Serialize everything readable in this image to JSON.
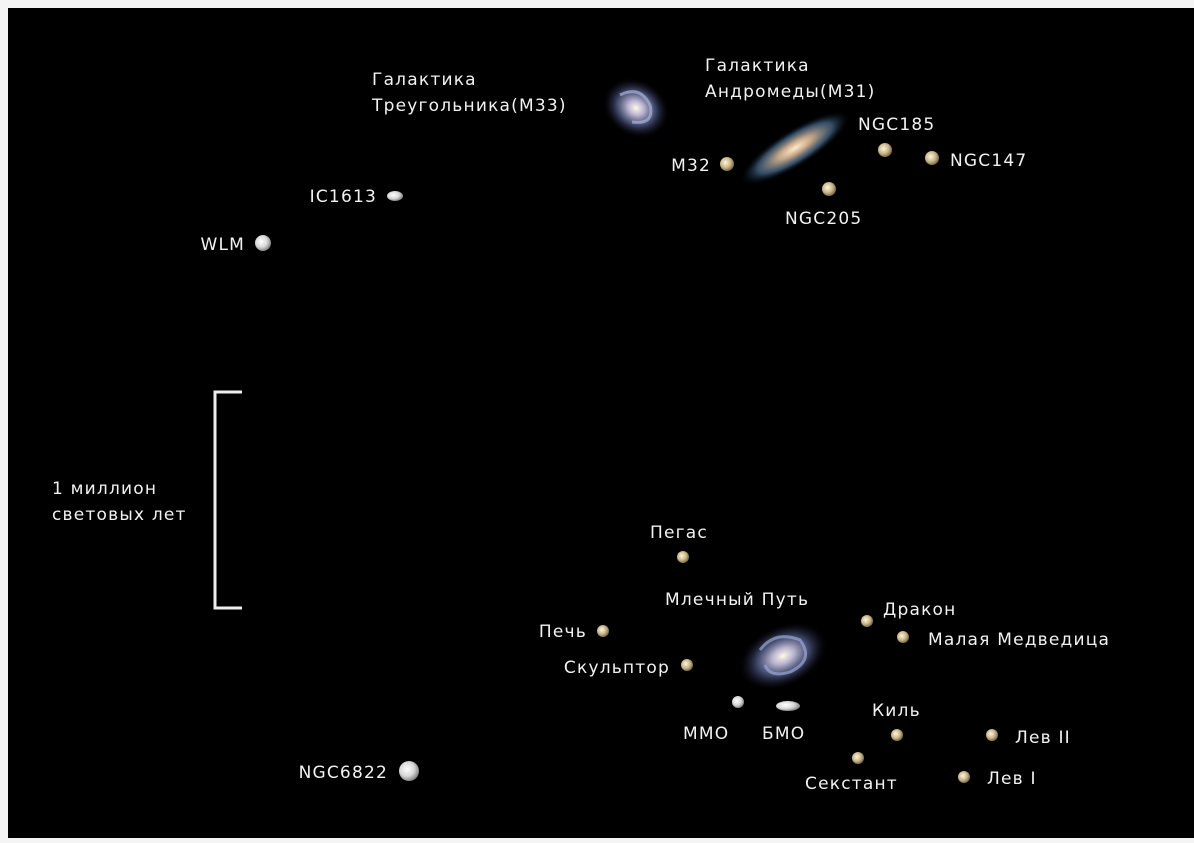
{
  "galaxies": [
    {
      "label": [
        "Галактика",
        "Треугольника(М33)"
      ]
    },
    {
      "label": [
        "Галактика",
        "Андромеды(М31)"
      ]
    },
    {
      "label": [
        "NGC185"
      ]
    },
    {
      "label": [
        "NGC147"
      ]
    },
    {
      "label": [
        "M32"
      ]
    },
    {
      "label": [
        "NGC205"
      ]
    },
    {
      "label": [
        "IC1613"
      ]
    },
    {
      "label": [
        "WLM"
      ]
    },
    {
      "label": [
        "Пегас"
      ]
    },
    {
      "label": [
        "Млечный Путь"
      ]
    },
    {
      "label": [
        "Печь"
      ]
    },
    {
      "label": [
        "Скульптор"
      ]
    },
    {
      "label": [
        "Дракон"
      ]
    },
    {
      "label": [
        "Малая Медведица"
      ]
    },
    {
      "label": [
        "ММО"
      ]
    },
    {
      "label": [
        "БМО"
      ]
    },
    {
      "label": [
        "Киль"
      ]
    },
    {
      "label": [
        "Лев II"
      ]
    },
    {
      "label": [
        "Секстант"
      ]
    },
    {
      "label": [
        "Лев I"
      ]
    },
    {
      "label": [
        "NGC6822"
      ]
    }
  ],
  "scale": {
    "label": [
      "1 миллион",
      "световых лет"
    ]
  }
}
